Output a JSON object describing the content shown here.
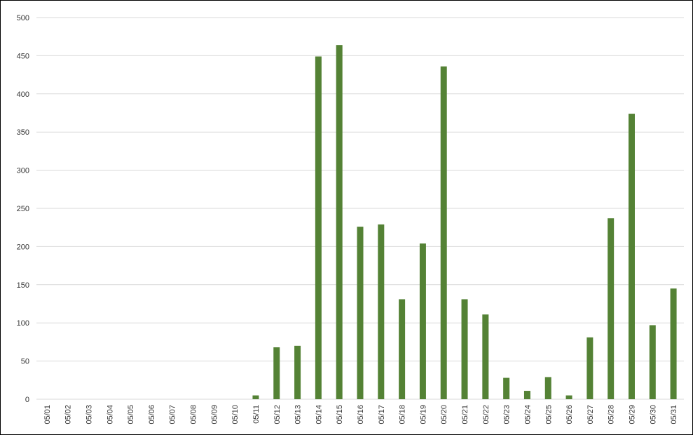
{
  "chart_data": {
    "type": "bar",
    "categories": [
      "05/01",
      "05/02",
      "05/03",
      "05/04",
      "05/05",
      "05/06",
      "05/07",
      "05/08",
      "05/09",
      "05/10",
      "05/11",
      "05/12",
      "05/13",
      "05/14",
      "05/15",
      "05/16",
      "05/17",
      "05/18",
      "05/19",
      "05/20",
      "05/21",
      "05/22",
      "05/23",
      "05/24",
      "05/25",
      "05/26",
      "05/27",
      "05/28",
      "05/29",
      "05/30",
      "05/31"
    ],
    "values": [
      0,
      0,
      0,
      0,
      0,
      0,
      0,
      0,
      0,
      0,
      5,
      68,
      70,
      449,
      464,
      226,
      229,
      131,
      204,
      436,
      131,
      111,
      28,
      11,
      29,
      5,
      81,
      237,
      374,
      97,
      145
    ],
    "color": "#548235",
    "ylim": [
      0,
      500
    ],
    "yticks": [
      0,
      50,
      100,
      150,
      200,
      250,
      300,
      350,
      400,
      450,
      500
    ],
    "grid": true
  }
}
